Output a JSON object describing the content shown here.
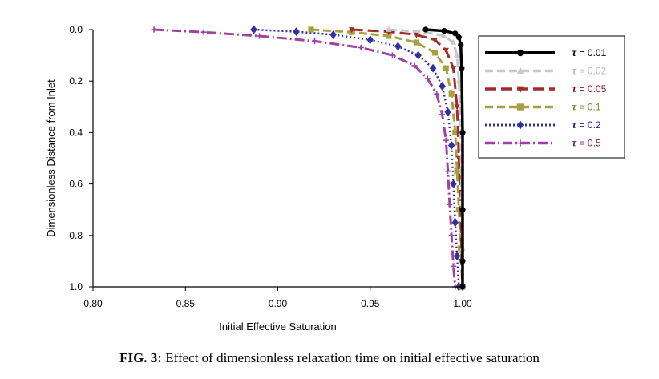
{
  "chart_data": {
    "type": "line",
    "xlabel": "Initial Effective Saturation",
    "ylabel": "Dimensionless Distance from Inlet",
    "xlim": [
      0.8,
      1.0
    ],
    "ylim": [
      0.0,
      1.0
    ],
    "y_inverted": true,
    "x_axis_position": "bottom",
    "xticks": [
      "0.80",
      "0.85",
      "0.90",
      "0.95",
      "1.00"
    ],
    "yticks": [
      "0.0",
      "0.2",
      "0.4",
      "0.6",
      "0.8",
      "1.0"
    ],
    "grid": false,
    "legend_position": "right",
    "series": [
      {
        "name": "τ = 0.01",
        "tau": "0.01",
        "color": "#000000",
        "dash": "solid",
        "marker": "circle",
        "x": [
          0.98,
          0.99,
          0.996,
          0.998,
          0.999,
          0.9995,
          1.0,
          1.0,
          1.0,
          1.0
        ],
        "y": [
          0.0,
          0.005,
          0.015,
          0.03,
          0.06,
          0.15,
          0.4,
          0.7,
          0.9,
          1.0
        ]
      },
      {
        "name": "τ = 0.02",
        "tau": "0.02",
        "color": "#c8c8c8",
        "dash": "dash",
        "marker": "triangle-up",
        "x": [
          0.96,
          0.98,
          0.99,
          0.995,
          0.997,
          0.998,
          0.999,
          0.9995,
          1.0,
          1.0
        ],
        "y": [
          0.0,
          0.01,
          0.025,
          0.05,
          0.1,
          0.2,
          0.4,
          0.65,
          0.85,
          1.0
        ]
      },
      {
        "name": "τ = 0.05",
        "tau": "0.05",
        "color": "#a52a2a",
        "dash": "longdash",
        "marker": "triangle-down",
        "x": [
          0.94,
          0.96,
          0.975,
          0.985,
          0.991,
          0.995,
          0.997,
          0.998,
          0.999,
          0.9995,
          1.0
        ],
        "y": [
          0.0,
          0.008,
          0.02,
          0.04,
          0.08,
          0.15,
          0.3,
          0.5,
          0.7,
          0.9,
          1.0
        ]
      },
      {
        "name": "τ = 0.1",
        "tau": "0.1",
        "color": "#a8a040",
        "dash": "dash",
        "marker": "square",
        "x": [
          0.918,
          0.94,
          0.96,
          0.975,
          0.985,
          0.991,
          0.994,
          0.996,
          0.997,
          0.998,
          0.999,
          1.0
        ],
        "y": [
          0.0,
          0.01,
          0.025,
          0.05,
          0.09,
          0.15,
          0.25,
          0.4,
          0.55,
          0.7,
          0.85,
          1.0
        ]
      },
      {
        "name": "τ = 0.2",
        "tau": "0.2",
        "color": "#3030a0",
        "dash": "dot",
        "marker": "diamond",
        "x": [
          0.887,
          0.91,
          0.93,
          0.95,
          0.965,
          0.976,
          0.984,
          0.989,
          0.992,
          0.994,
          0.995,
          0.996,
          0.997,
          0.998
        ],
        "y": [
          0.0,
          0.008,
          0.02,
          0.04,
          0.065,
          0.1,
          0.15,
          0.22,
          0.32,
          0.45,
          0.6,
          0.75,
          0.88,
          1.0
        ]
      },
      {
        "name": "τ = 0.5",
        "tau": "0.5",
        "color": "#a040a0",
        "dash": "dashdot",
        "marker": "cross",
        "x": [
          0.833,
          0.86,
          0.89,
          0.92,
          0.945,
          0.962,
          0.974,
          0.981,
          0.986,
          0.989,
          0.991,
          0.992,
          0.993,
          0.994,
          0.995,
          0.996
        ],
        "y": [
          0.0,
          0.01,
          0.025,
          0.045,
          0.07,
          0.1,
          0.14,
          0.19,
          0.25,
          0.33,
          0.43,
          0.55,
          0.68,
          0.8,
          0.92,
          1.0
        ]
      }
    ]
  },
  "legend": {
    "entries": [
      {
        "symbol": "τ",
        "eq": " = 0.01",
        "color": "#000000"
      },
      {
        "symbol": "τ",
        "eq": " = 0.02",
        "color": "#bdbdbd"
      },
      {
        "symbol": "τ",
        "eq": " = 0.05",
        "color": "#8b1a1a"
      },
      {
        "symbol": "τ",
        "eq": " = 0.1",
        "color": "#8a8030"
      },
      {
        "symbol": "τ",
        "eq": " = 0.2",
        "color": "#1f1f80"
      },
      {
        "symbol": "τ",
        "eq": " = 0.5",
        "color": "#802080"
      }
    ]
  },
  "caption": {
    "label": "FIG. 3:",
    "text": "Effect of dimensionless relaxation time on initial effective saturation"
  }
}
